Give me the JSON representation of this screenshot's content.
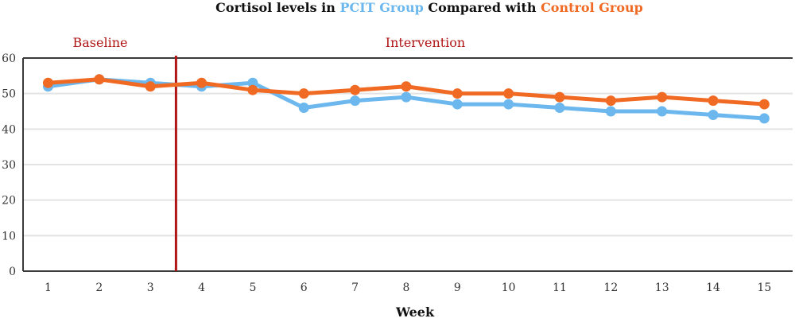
{
  "colors": {
    "pcit": "#6cb8ee",
    "control": "#f06a24",
    "phase_line": "#b01515",
    "phase_label": "#b01515",
    "gridline": "#e3e3e3",
    "frame": "#3a3a3a"
  },
  "chart_data": {
    "type": "line",
    "title": {
      "part1": "Cortisol levels in ",
      "part2": "PCIT Group",
      "part3": " Compared with ",
      "part4": "Control Group"
    },
    "xlabel": "Week",
    "ylabel": "",
    "x": [
      1,
      2,
      3,
      4,
      5,
      6,
      7,
      8,
      9,
      10,
      11,
      12,
      13,
      14,
      15
    ],
    "ylim": [
      0,
      60
    ],
    "yticks": [
      0,
      10,
      20,
      30,
      40,
      50,
      60
    ],
    "grid": true,
    "series": [
      {
        "name": "PCIT Group",
        "color": "#6cb8ee",
        "values": [
          52,
          54,
          53,
          52,
          53,
          46,
          48,
          49,
          47,
          47,
          46,
          45,
          45,
          44,
          43
        ]
      },
      {
        "name": "Control Group",
        "color": "#f06a24",
        "values": [
          53,
          54,
          52,
          53,
          51,
          50,
          51,
          52,
          50,
          50,
          49,
          48,
          49,
          48,
          47
        ]
      }
    ],
    "phases": [
      {
        "label": "Baseline",
        "start_x": 0.5,
        "end_x": 3.5
      },
      {
        "label": "Intervention",
        "start_x": 3.5,
        "end_x": 16.1
      }
    ]
  }
}
